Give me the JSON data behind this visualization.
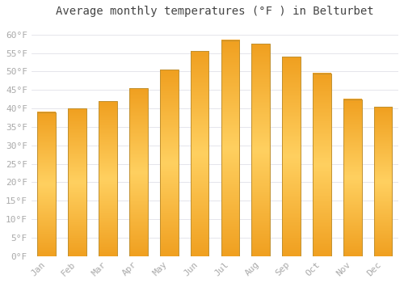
{
  "title": "Average monthly temperatures (°F ) in Belturbet",
  "months": [
    "Jan",
    "Feb",
    "Mar",
    "Apr",
    "May",
    "Jun",
    "Jul",
    "Aug",
    "Sep",
    "Oct",
    "Nov",
    "Dec"
  ],
  "values": [
    39,
    40,
    42,
    45.5,
    50.5,
    55.5,
    58.5,
    57.5,
    54,
    49.5,
    42.5,
    40.5
  ],
  "bar_color_top": "#FFD060",
  "bar_color_bottom": "#F0A020",
  "bar_edge_color": "#C09030",
  "background_color": "#FFFFFF",
  "grid_color": "#E0E0E8",
  "ylim": [
    0,
    63
  ],
  "yticks": [
    0,
    5,
    10,
    15,
    20,
    25,
    30,
    35,
    40,
    45,
    50,
    55,
    60
  ],
  "title_fontsize": 10,
  "tick_fontsize": 8,
  "tick_font_color": "#AAAAAA",
  "font_family": "monospace"
}
